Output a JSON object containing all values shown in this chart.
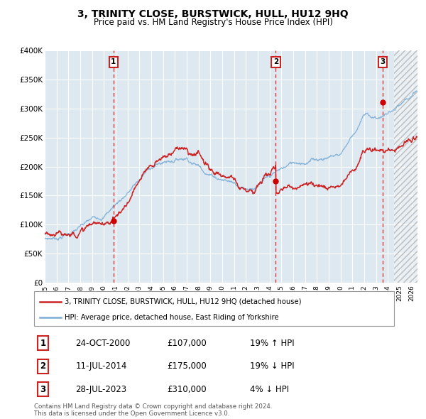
{
  "title": "3, TRINITY CLOSE, BURSTWICK, HULL, HU12 9HQ",
  "subtitle": "Price paid vs. HM Land Registry's House Price Index (HPI)",
  "x_start": 1995.0,
  "x_end": 2026.5,
  "y_min": 0,
  "y_max": 400000,
  "y_ticks": [
    0,
    50000,
    100000,
    150000,
    200000,
    250000,
    300000,
    350000,
    400000
  ],
  "y_tick_labels": [
    "£0",
    "£50K",
    "£100K",
    "£150K",
    "£200K",
    "£250K",
    "£300K",
    "£350K",
    "£400K"
  ],
  "x_ticks": [
    1995,
    1996,
    1997,
    1998,
    1999,
    2000,
    2001,
    2002,
    2003,
    2004,
    2005,
    2006,
    2007,
    2008,
    2009,
    2010,
    2011,
    2012,
    2013,
    2014,
    2015,
    2016,
    2017,
    2018,
    2019,
    2020,
    2021,
    2022,
    2023,
    2024,
    2025,
    2026
  ],
  "hpi_color": "#7aacd6",
  "price_color": "#cc2222",
  "bg_color": "#dde8f0",
  "sale_dates": [
    2000.81,
    2014.53,
    2023.57
  ],
  "sale_prices": [
    107000,
    175000,
    310000
  ],
  "sale_labels": [
    "1",
    "2",
    "3"
  ],
  "sale_info": [
    [
      "1",
      "24-OCT-2000",
      "£107,000",
      "19% ↑ HPI"
    ],
    [
      "2",
      "11-JUL-2014",
      "£175,000",
      "19% ↓ HPI"
    ],
    [
      "3",
      "28-JUL-2023",
      "£310,000",
      "4% ↓ HPI"
    ]
  ],
  "legend_line1": "3, TRINITY CLOSE, BURSTWICK, HULL, HU12 9HQ (detached house)",
  "legend_line2": "HPI: Average price, detached house, East Riding of Yorkshire",
  "footnote": "Contains HM Land Registry data © Crown copyright and database right 2024.\nThis data is licensed under the Open Government Licence v3.0.",
  "future_start": 2024.5
}
